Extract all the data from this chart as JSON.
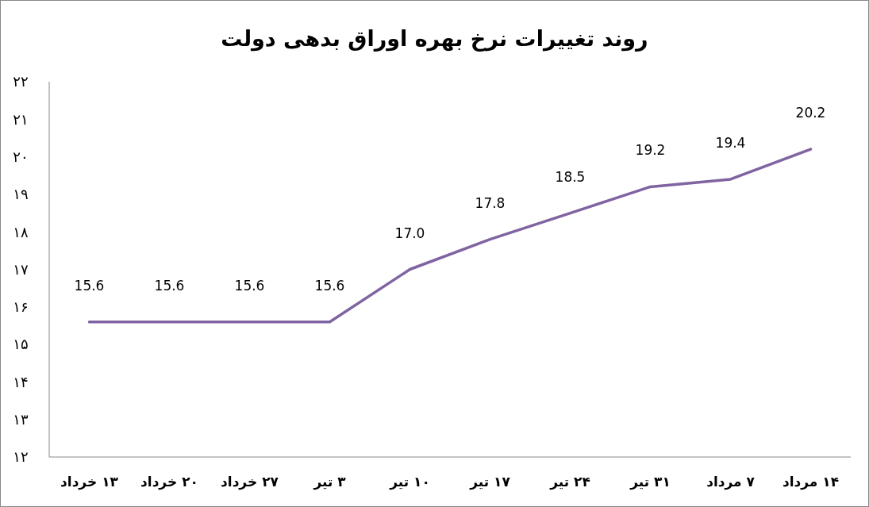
{
  "chart_data": {
    "type": "line",
    "title": "روند تغییرات نرخ بهره اوراق بدهی دولت",
    "categories": [
      "۱۳ خرداد",
      "۲۰ خرداد",
      "۲۷ خرداد",
      "۳ تیر",
      "۱۰ تیر",
      "۱۷ تیر",
      "۲۴ تیر",
      "۳۱ تیر",
      "۷ مرداد",
      "۱۴ مرداد"
    ],
    "series": [
      {
        "color": "#8064a2",
        "values": [
          15.6,
          15.6,
          15.6,
          15.6,
          17.0,
          17.8,
          18.5,
          19.2,
          19.4,
          20.2
        ],
        "value_labels": [
          "15.6",
          "15.6",
          "15.6",
          "15.6",
          "17.0",
          "17.8",
          "18.5",
          "19.2",
          "19.4",
          "20.2"
        ]
      }
    ],
    "ylim": [
      12,
      22
    ],
    "yticks": [
      {
        "value": 12,
        "label": "۱۲"
      },
      {
        "value": 13,
        "label": "۱۳"
      },
      {
        "value": 14,
        "label": "۱۴"
      },
      {
        "value": 15,
        "label": "۱۵"
      },
      {
        "value": 16,
        "label": "۱۶"
      },
      {
        "value": 17,
        "label": "۱۷"
      },
      {
        "value": 18,
        "label": "۱۸"
      },
      {
        "value": 19,
        "label": "۱۹"
      },
      {
        "value": 20,
        "label": "۲۰"
      },
      {
        "value": 21,
        "label": "۲۱"
      },
      {
        "value": 22,
        "label": "۲۲"
      }
    ],
    "grid": false,
    "marker": "none",
    "line_style": "solid"
  }
}
